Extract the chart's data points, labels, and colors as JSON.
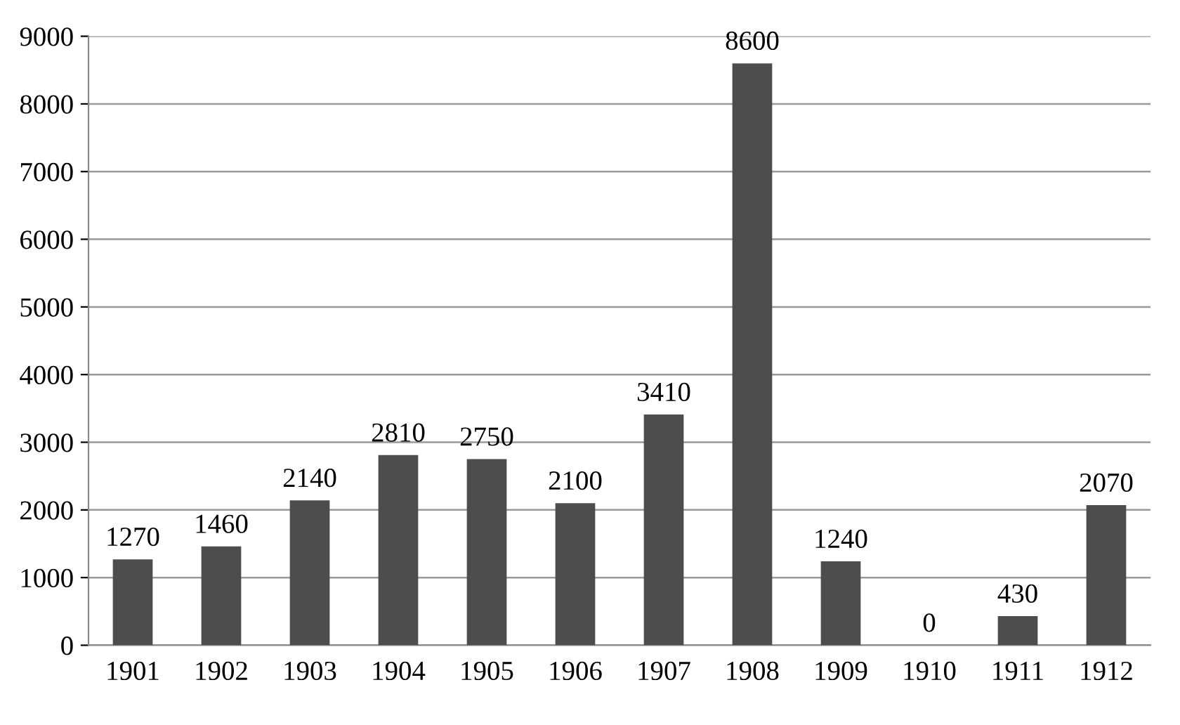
{
  "chart_data": {
    "type": "bar",
    "categories": [
      "1901",
      "1902",
      "1903",
      "1904",
      "1905",
      "1906",
      "1907",
      "1908",
      "1909",
      "1910",
      "1911",
      "1912"
    ],
    "values": [
      1270,
      1460,
      2140,
      2810,
      2750,
      2100,
      3410,
      8600,
      1240,
      0,
      430,
      2070
    ],
    "color": "#4d4d4d",
    "ylim": [
      0,
      9000
    ],
    "yticks": [
      0,
      1000,
      2000,
      3000,
      4000,
      5000,
      6000,
      7000,
      8000,
      9000
    ],
    "grid": "y",
    "data_labels": true
  }
}
